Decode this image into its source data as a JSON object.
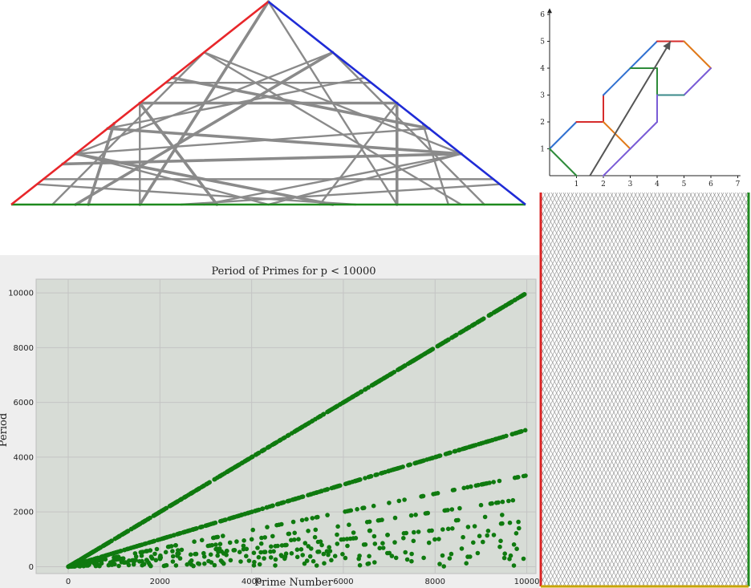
{
  "colors": {
    "triangle_left_edge": "#e8262a",
    "triangle_right_edge": "#1f2bd6",
    "triangle_base": "#1e8a1e",
    "path_gray": "#8a8a8a",
    "hex_blue": "#2f6fd0",
    "hex_red": "#d62c2c",
    "hex_green": "#2e8b3a",
    "hex_orange": "#e07a1a",
    "hex_purple": "#7a5cd6",
    "hex_teal": "#3a8a8a",
    "plot_bg": "#d7dcd6",
    "grid": "#c4c4c4",
    "marker": "#0f7a0f",
    "billiard_left": "#d92424",
    "billiard_right": "#1f8a1f",
    "billiard_bottom": "#c9a400"
  },
  "chart_data": [
    {
      "type": "diagram",
      "description_label": "",
      "vertices": [
        [
          0,
          0
        ],
        [
          1,
          0
        ],
        [
          0.5,
          1
        ]
      ],
      "edge_colors": [
        "triangle_base",
        "triangle_right_edge",
        "triangle_left_edge"
      ]
    },
    {
      "type": "line",
      "xlim": [
        0,
        7
      ],
      "ylim": [
        0,
        6
      ],
      "x_ticks": [
        "1",
        "2",
        "3",
        "4",
        "5",
        "6",
        "7"
      ],
      "y_ticks": [
        "1",
        "2",
        "3",
        "4",
        "5",
        "6"
      ],
      "segments": [
        {
          "color": "hex_blue",
          "points": [
            [
              0,
              1
            ],
            [
              1,
              2
            ]
          ]
        },
        {
          "color": "hex_red",
          "points": [
            [
              1,
              2
            ],
            [
              2,
              2
            ]
          ]
        },
        {
          "color": "hex_red",
          "points": [
            [
              2,
              2
            ],
            [
              2,
              3
            ]
          ]
        },
        {
          "color": "hex_blue",
          "points": [
            [
              2,
              3
            ],
            [
              4,
              5
            ]
          ]
        },
        {
          "color": "hex_red",
          "points": [
            [
              4,
              5
            ],
            [
              5,
              5
            ]
          ]
        },
        {
          "color": "hex_orange",
          "points": [
            [
              5,
              5
            ],
            [
              6,
              4
            ]
          ]
        },
        {
          "color": "hex_purple",
          "points": [
            [
              6,
              4
            ],
            [
              5,
              3
            ]
          ]
        },
        {
          "color": "hex_teal",
          "points": [
            [
              5,
              3
            ],
            [
              4,
              3
            ]
          ]
        },
        {
          "color": "hex_green",
          "points": [
            [
              4,
              3
            ],
            [
              4,
              4
            ]
          ]
        },
        {
          "color": "hex_green",
          "points": [
            [
              4,
              4
            ],
            [
              3,
              4
            ]
          ]
        },
        {
          "color": "hex_green",
          "points": [
            [
              0,
              1
            ],
            [
              1,
              0
            ]
          ]
        },
        {
          "color": "hex_orange",
          "points": [
            [
              2,
              2
            ],
            [
              3,
              1
            ]
          ]
        },
        {
          "color": "hex_purple",
          "points": [
            [
              2,
              0
            ],
            [
              3,
              1
            ]
          ]
        },
        {
          "color": "hex_purple",
          "points": [
            [
              3,
              1
            ],
            [
              4,
              2
            ]
          ]
        },
        {
          "color": "hex_purple",
          "points": [
            [
              4,
              2
            ],
            [
              4,
              3
            ]
          ]
        }
      ],
      "arrow": {
        "from": [
          1.5,
          0
        ],
        "to": [
          4.5,
          5
        ]
      }
    },
    {
      "type": "scatter",
      "title": "Period of Primes for p < 10000",
      "xlabel": "Prime Number",
      "ylabel": "Period",
      "xlim": [
        -700,
        10200
      ],
      "ylim": [
        -250,
        10500
      ],
      "x_ticks": [
        0,
        2000,
        4000,
        6000,
        8000,
        10000
      ],
      "y_ticks": [
        0,
        2000,
        4000,
        6000,
        8000,
        10000
      ],
      "grid": true,
      "series": [
        {
          "relation": "p-1",
          "range": [
            2,
            9973
          ]
        },
        {
          "relation": "(p-1)/2",
          "range": [
            3,
            9973
          ]
        },
        {
          "relation": "(p-1)/3",
          "range": [
            7,
            9973
          ]
        },
        {
          "relation": "(p-1)/4",
          "range": [
            13,
            9973
          ]
        },
        {
          "relation": "(p-1)/6 and smaller",
          "range": [
            7,
            9973
          ]
        }
      ]
    },
    {
      "type": "diagram",
      "description_label": "",
      "edge_colors": [
        "billiard_left",
        "billiard_right",
        "billiard_bottom"
      ]
    }
  ]
}
